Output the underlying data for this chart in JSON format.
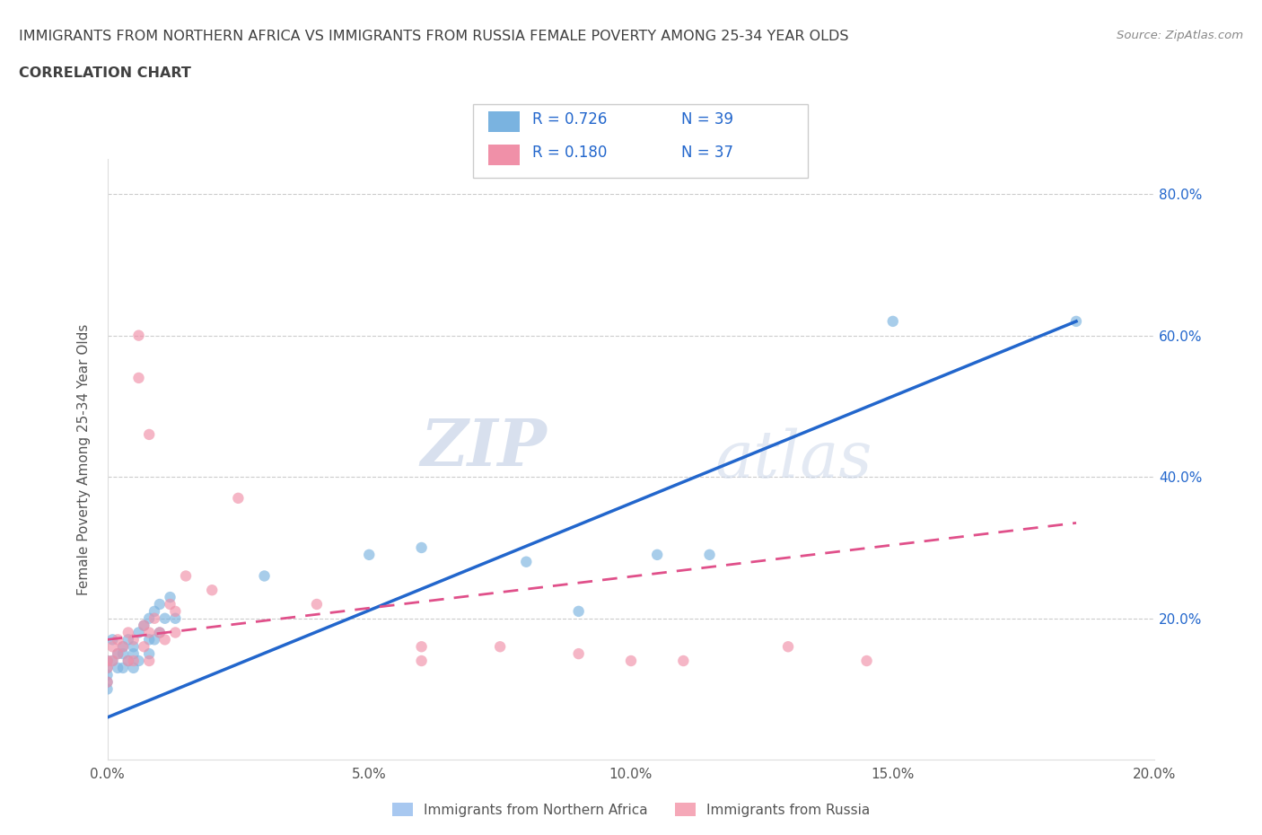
{
  "title_line1": "IMMIGRANTS FROM NORTHERN AFRICA VS IMMIGRANTS FROM RUSSIA FEMALE POVERTY AMONG 25-34 YEAR OLDS",
  "title_line2": "CORRELATION CHART",
  "source_text": "Source: ZipAtlas.com",
  "ylabel": "Female Poverty Among 25-34 Year Olds",
  "xlim": [
    0.0,
    0.2
  ],
  "ylim": [
    0.0,
    0.85
  ],
  "xticklabels": [
    "0.0%",
    "5.0%",
    "10.0%",
    "15.0%",
    "20.0%"
  ],
  "xticks": [
    0.0,
    0.05,
    0.1,
    0.15,
    0.2
  ],
  "yticklabels": [
    "20.0%",
    "40.0%",
    "60.0%",
    "80.0%"
  ],
  "yticks": [
    0.2,
    0.4,
    0.6,
    0.8
  ],
  "watermark_zip": "ZIP",
  "watermark_atlas": "atlas",
  "legend_entries": [
    {
      "label_r": "R = 0.726",
      "label_n": "N = 39",
      "color": "#a8c8f0"
    },
    {
      "label_r": "R = 0.180",
      "label_n": "N = 37",
      "color": "#f5a8b8"
    }
  ],
  "legend_bottom": [
    {
      "label": "Immigrants from Northern Africa",
      "color": "#a8c8f0"
    },
    {
      "label": "Immigrants from Russia",
      "color": "#f5a8b8"
    }
  ],
  "series1_color": "#7ab3e0",
  "series2_color": "#f090a8",
  "line1_color": "#2266cc",
  "line2_color": "#e0508a",
  "grid_color": "#cccccc",
  "background_color": "#ffffff",
  "title_color": "#404040",
  "series1_x": [
    0.0,
    0.0,
    0.0,
    0.0,
    0.0,
    0.001,
    0.001,
    0.002,
    0.002,
    0.003,
    0.003,
    0.003,
    0.004,
    0.004,
    0.005,
    0.005,
    0.005,
    0.006,
    0.006,
    0.007,
    0.008,
    0.008,
    0.008,
    0.009,
    0.009,
    0.01,
    0.01,
    0.011,
    0.012,
    0.013,
    0.03,
    0.05,
    0.06,
    0.08,
    0.09,
    0.105,
    0.115,
    0.15,
    0.185
  ],
  "series1_y": [
    0.14,
    0.13,
    0.12,
    0.11,
    0.1,
    0.17,
    0.14,
    0.15,
    0.13,
    0.16,
    0.15,
    0.13,
    0.17,
    0.14,
    0.16,
    0.15,
    0.13,
    0.18,
    0.14,
    0.19,
    0.2,
    0.17,
    0.15,
    0.21,
    0.17,
    0.22,
    0.18,
    0.2,
    0.23,
    0.2,
    0.26,
    0.29,
    0.3,
    0.28,
    0.21,
    0.29,
    0.29,
    0.62,
    0.62
  ],
  "series2_x": [
    0.0,
    0.0,
    0.0,
    0.001,
    0.001,
    0.002,
    0.002,
    0.003,
    0.004,
    0.004,
    0.005,
    0.005,
    0.006,
    0.006,
    0.007,
    0.007,
    0.008,
    0.008,
    0.008,
    0.009,
    0.01,
    0.011,
    0.012,
    0.013,
    0.013,
    0.015,
    0.02,
    0.025,
    0.04,
    0.06,
    0.06,
    0.075,
    0.09,
    0.1,
    0.11,
    0.13,
    0.145
  ],
  "series2_y": [
    0.14,
    0.13,
    0.11,
    0.16,
    0.14,
    0.17,
    0.15,
    0.16,
    0.18,
    0.14,
    0.17,
    0.14,
    0.6,
    0.54,
    0.19,
    0.16,
    0.46,
    0.18,
    0.14,
    0.2,
    0.18,
    0.17,
    0.22,
    0.21,
    0.18,
    0.26,
    0.24,
    0.37,
    0.22,
    0.14,
    0.16,
    0.16,
    0.15,
    0.14,
    0.14,
    0.16,
    0.14
  ],
  "line1_x": [
    0.0,
    0.185
  ],
  "line1_y": [
    0.06,
    0.62
  ],
  "line2_x": [
    0.0,
    0.185
  ],
  "line2_y": [
    0.17,
    0.335
  ]
}
